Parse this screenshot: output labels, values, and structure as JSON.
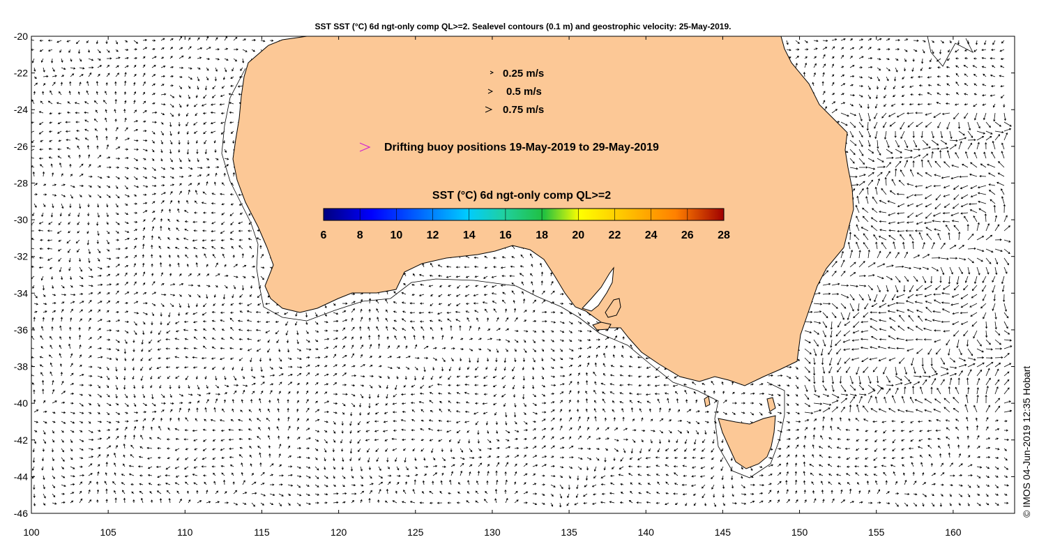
{
  "title": "SST SST (°C) 6d ngt-only comp QL>=2. Sealevel contours (0.1 m) and geostrophic velocity: 25-May-2019.",
  "legend": {
    "speeds": [
      "0.25 m/s",
      "0.5 m/s",
      "0.75 m/s"
    ],
    "buoy_text": "Drifting buoy positions 19-May-2019 to 29-May-2019",
    "buoy_color": "#d020d0"
  },
  "colorbar": {
    "title": "SST (°C) 6d ngt-only comp QL>=2",
    "ticks": [
      "6",
      "8",
      "10",
      "12",
      "14",
      "16",
      "18",
      "20",
      "22",
      "24",
      "26",
      "28"
    ],
    "range": [
      6,
      28
    ]
  },
  "axes": {
    "lon_ticks": [
      "100",
      "105",
      "110",
      "115",
      "120",
      "125",
      "130",
      "135",
      "140",
      "145",
      "150",
      "155",
      "160"
    ],
    "lat_ticks": [
      "-20",
      "-22",
      "-24",
      "-26",
      "-28",
      "-30",
      "-32",
      "-34",
      "-36",
      "-38",
      "-40",
      "-42",
      "-44",
      "-46"
    ],
    "lon_range": [
      100,
      164
    ],
    "lat_range": [
      -46,
      -20
    ]
  },
  "colors": {
    "land": "#fcc896",
    "arrow": "#000000"
  },
  "copyright": "© IMOS 04-Jun-2019 12:35 Hobart"
}
